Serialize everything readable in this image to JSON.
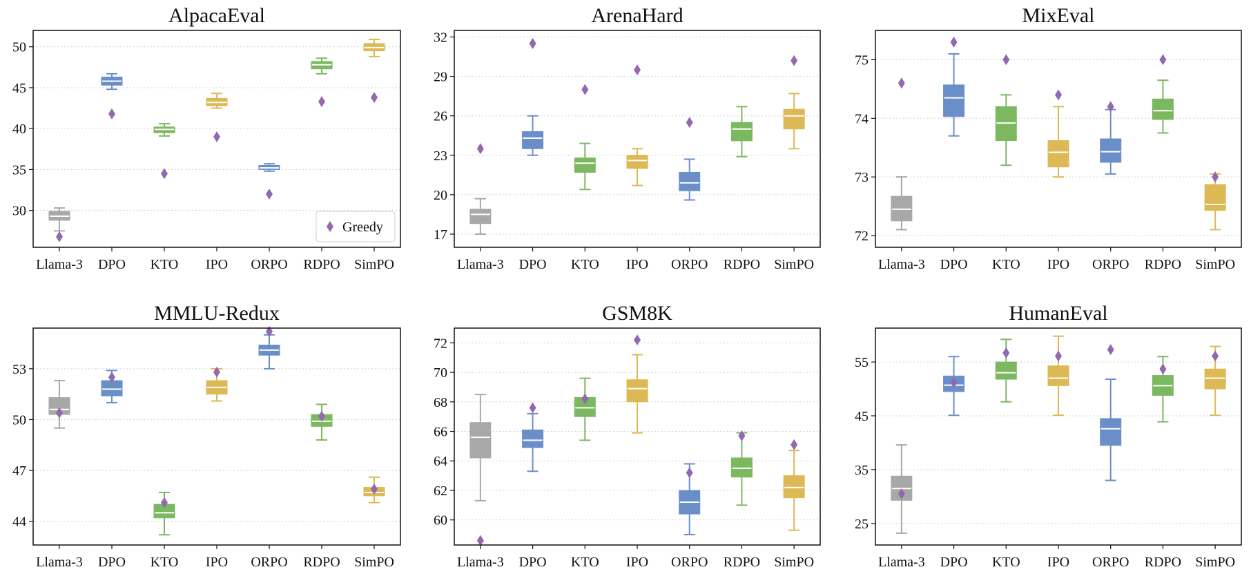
{
  "chart_data": [
    {
      "type": "box",
      "title": "AlpacaEval",
      "categories": [
        "Llama-3",
        "DPO",
        "KTO",
        "IPO",
        "ORPO",
        "RDPO",
        "SimPO"
      ],
      "yticks": [
        30,
        35,
        40,
        45,
        50
      ],
      "ylim": [
        25.5,
        52
      ],
      "boxes": [
        {
          "whislo": 27.5,
          "q1": 28.8,
          "med": 29.3,
          "q3": 29.9,
          "whishi": 30.3
        },
        {
          "whislo": 44.8,
          "q1": 45.3,
          "med": 45.8,
          "q3": 46.3,
          "whishi": 46.7
        },
        {
          "whislo": 39.1,
          "q1": 39.5,
          "med": 39.9,
          "q3": 40.2,
          "whishi": 40.6
        },
        {
          "whislo": 42.5,
          "q1": 42.8,
          "med": 43.2,
          "q3": 43.7,
          "whishi": 44.3
        },
        {
          "whislo": 34.8,
          "q1": 35.0,
          "med": 35.2,
          "q3": 35.5,
          "whishi": 35.7
        },
        {
          "whislo": 46.7,
          "q1": 47.3,
          "med": 47.8,
          "q3": 48.2,
          "whishi": 48.6
        },
        {
          "whislo": 48.8,
          "q1": 49.5,
          "med": 49.9,
          "q3": 50.4,
          "whishi": 50.9
        }
      ],
      "greedy": [
        26.8,
        41.8,
        34.5,
        39.0,
        32.0,
        43.3,
        43.8
      ],
      "legend": {
        "label": "Greedy",
        "position": "lower right"
      }
    },
    {
      "type": "box",
      "title": "ArenaHard",
      "categories": [
        "Llama-3",
        "DPO",
        "KTO",
        "IPO",
        "ORPO",
        "RDPO",
        "SimPO"
      ],
      "yticks": [
        17,
        20,
        23,
        26,
        29,
        32
      ],
      "ylim": [
        16,
        32.5
      ],
      "boxes": [
        {
          "whislo": 17.0,
          "q1": 17.8,
          "med": 18.5,
          "q3": 18.9,
          "whishi": 19.7
        },
        {
          "whislo": 23.0,
          "q1": 23.5,
          "med": 24.3,
          "q3": 24.8,
          "whishi": 26.0
        },
        {
          "whislo": 20.4,
          "q1": 21.7,
          "med": 22.4,
          "q3": 22.8,
          "whishi": 23.9
        },
        {
          "whislo": 20.7,
          "q1": 22.0,
          "med": 22.6,
          "q3": 23.0,
          "whishi": 23.5
        },
        {
          "whislo": 19.6,
          "q1": 20.3,
          "med": 20.9,
          "q3": 21.7,
          "whishi": 22.7
        },
        {
          "whislo": 22.9,
          "q1": 24.1,
          "med": 25.0,
          "q3": 25.5,
          "whishi": 26.7
        },
        {
          "whislo": 23.5,
          "q1": 25.0,
          "med": 26.0,
          "q3": 26.5,
          "whishi": 27.7
        }
      ],
      "greedy": [
        23.5,
        31.5,
        28.0,
        29.5,
        25.5,
        null,
        30.2
      ]
    },
    {
      "type": "box",
      "title": "MixEval",
      "categories": [
        "Llama-3",
        "DPO",
        "KTO",
        "IPO",
        "ORPO",
        "RDPO",
        "SimPO"
      ],
      "yticks": [
        72,
        73,
        74,
        75
      ],
      "ylim": [
        71.8,
        75.5
      ],
      "boxes": [
        {
          "whislo": 72.1,
          "q1": 72.25,
          "med": 72.45,
          "q3": 72.67,
          "whishi": 73.0
        },
        {
          "whislo": 73.7,
          "q1": 74.03,
          "med": 74.35,
          "q3": 74.57,
          "whishi": 75.1
        },
        {
          "whislo": 73.2,
          "q1": 73.62,
          "med": 73.92,
          "q3": 74.2,
          "whishi": 74.4
        },
        {
          "whislo": 73.0,
          "q1": 73.17,
          "med": 73.42,
          "q3": 73.62,
          "whishi": 74.2
        },
        {
          "whislo": 73.05,
          "q1": 73.25,
          "med": 73.43,
          "q3": 73.65,
          "whishi": 74.15
        },
        {
          "whislo": 73.75,
          "q1": 73.98,
          "med": 74.13,
          "q3": 74.33,
          "whishi": 74.65
        },
        {
          "whislo": 72.1,
          "q1": 72.43,
          "med": 72.53,
          "q3": 72.87,
          "whishi": 73.05
        }
      ],
      "greedy": [
        74.6,
        75.3,
        75.0,
        74.4,
        74.2,
        75.0,
        73.0
      ]
    },
    {
      "type": "box",
      "title": "MMLU-Redux",
      "categories": [
        "Llama-3",
        "DPO",
        "KTO",
        "IPO",
        "ORPO",
        "RDPO",
        "SimPO"
      ],
      "yticks": [
        44,
        47,
        50,
        53
      ],
      "ylim": [
        42.6,
        55.4
      ],
      "boxes": [
        {
          "whislo": 49.5,
          "q1": 50.3,
          "med": 50.6,
          "q3": 51.3,
          "whishi": 52.3
        },
        {
          "whislo": 51.0,
          "q1": 51.4,
          "med": 51.8,
          "q3": 52.3,
          "whishi": 52.9
        },
        {
          "whislo": 43.2,
          "q1": 44.2,
          "med": 44.5,
          "q3": 45.0,
          "whishi": 45.7
        },
        {
          "whislo": 51.1,
          "q1": 51.5,
          "med": 51.9,
          "q3": 52.3,
          "whishi": 53.0
        },
        {
          "whislo": 53.0,
          "q1": 53.8,
          "med": 54.1,
          "q3": 54.4,
          "whishi": 55.0
        },
        {
          "whislo": 48.8,
          "q1": 49.6,
          "med": 49.9,
          "q3": 50.3,
          "whishi": 50.9
        },
        {
          "whislo": 45.1,
          "q1": 45.5,
          "med": 45.7,
          "q3": 46.0,
          "whishi": 46.6
        }
      ],
      "greedy": [
        50.4,
        52.5,
        45.1,
        52.8,
        55.2,
        50.2,
        45.9
      ]
    },
    {
      "type": "box",
      "title": "GSM8K",
      "categories": [
        "Llama-3",
        "DPO",
        "KTO",
        "IPO",
        "ORPO",
        "RDPO",
        "SimPO"
      ],
      "yticks": [
        60,
        62,
        64,
        66,
        68,
        70,
        72
      ],
      "ylim": [
        58.3,
        73.0
      ],
      "boxes": [
        {
          "whislo": 61.3,
          "q1": 64.2,
          "med": 65.6,
          "q3": 66.6,
          "whishi": 68.5
        },
        {
          "whislo": 63.3,
          "q1": 64.9,
          "med": 65.4,
          "q3": 66.1,
          "whishi": 67.2
        },
        {
          "whislo": 65.4,
          "q1": 67.0,
          "med": 67.6,
          "q3": 68.3,
          "whishi": 69.6
        },
        {
          "whislo": 65.9,
          "q1": 68.0,
          "med": 68.9,
          "q3": 69.5,
          "whishi": 71.2
        },
        {
          "whislo": 59.0,
          "q1": 60.4,
          "med": 61.2,
          "q3": 62.0,
          "whishi": 63.8
        },
        {
          "whislo": 61.0,
          "q1": 62.9,
          "med": 63.5,
          "q3": 64.2,
          "whishi": 65.9
        },
        {
          "whislo": 59.3,
          "q1": 61.5,
          "med": 62.2,
          "q3": 63.0,
          "whishi": 64.7
        }
      ],
      "greedy": [
        58.6,
        67.6,
        68.2,
        72.2,
        63.2,
        65.7,
        65.1
      ]
    },
    {
      "type": "box",
      "title": "HumanEval",
      "categories": [
        "Llama-3",
        "DPO",
        "KTO",
        "IPO",
        "ORPO",
        "RDPO",
        "SimPO"
      ],
      "yticks": [
        25,
        35,
        45,
        55
      ],
      "ylim": [
        21,
        61.3
      ],
      "boxes": [
        {
          "whislo": 23.2,
          "q1": 29.3,
          "med": 31.5,
          "q3": 33.8,
          "whishi": 39.6
        },
        {
          "whislo": 45.1,
          "q1": 49.5,
          "med": 50.7,
          "q3": 52.4,
          "whishi": 56.0
        },
        {
          "whislo": 47.6,
          "q1": 51.8,
          "med": 53.0,
          "q3": 55.0,
          "whishi": 59.2
        },
        {
          "whislo": 45.1,
          "q1": 50.6,
          "med": 52.0,
          "q3": 54.3,
          "whishi": 59.8
        },
        {
          "whislo": 33.0,
          "q1": 39.5,
          "med": 42.6,
          "q3": 44.5,
          "whishi": 51.8
        },
        {
          "whislo": 43.9,
          "q1": 48.8,
          "med": 50.6,
          "q3": 52.5,
          "whishi": 56.0
        },
        {
          "whislo": 45.1,
          "q1": 50.0,
          "med": 52.0,
          "q3": 53.7,
          "whishi": 57.9
        }
      ],
      "greedy": [
        30.5,
        51.2,
        56.7,
        56.1,
        57.3,
        53.7,
        56.1
      ]
    }
  ],
  "colors": {
    "Llama-3": "#a8a8a8",
    "DPO": "#6a8fc8",
    "KTO": "#7cb860",
    "IPO": "#ddb955",
    "ORPO": "#6a8fc8",
    "RDPO": "#7cb860",
    "SimPO": "#ddb955",
    "median": "#ffffff",
    "greedy": "#9468b0",
    "grid": "#cfcfcf",
    "axis": "#111111"
  }
}
